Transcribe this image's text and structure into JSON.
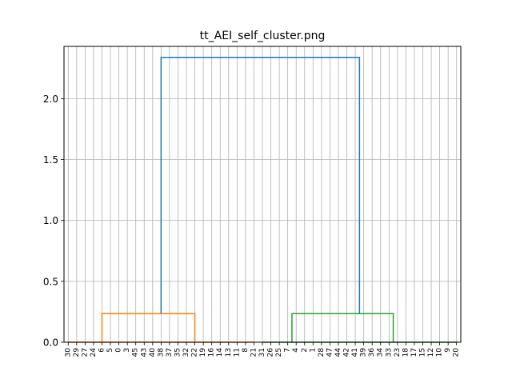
{
  "chart_data": {
    "type": "dendrogram",
    "title": "tt_AEI_self_cluster.png",
    "xlabel": "",
    "ylabel": "",
    "ylim": [
      0,
      2.43
    ],
    "yticks": [
      0.0,
      0.5,
      1.0,
      1.5,
      2.0,
      2.5
    ],
    "ytick_labels": [
      "0.0",
      "0.5",
      "1.0",
      "1.5",
      "2.0"
    ],
    "grid": true,
    "leaf_labels": [
      "30",
      "29",
      "27",
      "24",
      "6",
      "5",
      "0",
      "3",
      "45",
      "43",
      "40",
      "38",
      "37",
      "35",
      "32",
      "22",
      "19",
      "16",
      "14",
      "13",
      "11",
      "8",
      "21",
      "31",
      "26",
      "25",
      "7",
      "4",
      "2",
      "1",
      "28",
      "47",
      "44",
      "42",
      "41",
      "39",
      "36",
      "34",
      "33",
      "23",
      "18",
      "17",
      "15",
      "12",
      "10",
      "9",
      "20"
    ],
    "links": [
      {
        "left": [
          0,
          22
        ],
        "height": 0.0,
        "color": "#ff7f0e"
      },
      {
        "left": [
          0,
          8
        ],
        "right": [
          8,
          22
        ],
        "height": 0.235,
        "color": "#ff7f0e"
      },
      {
        "left": [
          23,
          46
        ],
        "height": 0.0,
        "color": "#2ca02c"
      },
      {
        "left": [
          23,
          30
        ],
        "right": [
          31,
          46
        ],
        "height": 0.235,
        "color": "#2ca02c"
      },
      {
        "left": [
          0,
          22
        ],
        "right": [
          23,
          46
        ],
        "height": 2.34,
        "color": "#1f77b4"
      }
    ],
    "colors": {
      "cluster_1": "#ff7f0e",
      "cluster_2": "#2ca02c",
      "root": "#1f77b4",
      "grid": "#b0b0b0"
    }
  }
}
